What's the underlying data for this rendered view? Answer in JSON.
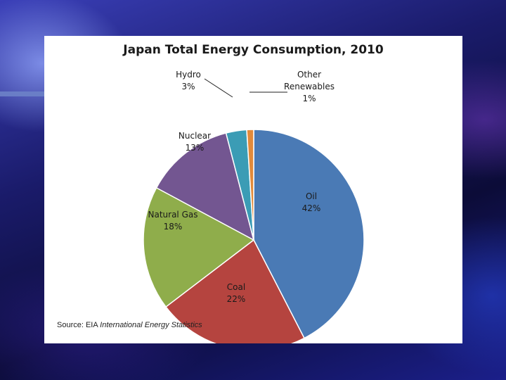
{
  "chart_data": {
    "type": "pie",
    "title": "Japan Total Energy Consumption, 2010",
    "slices": [
      {
        "id": "oil",
        "name": "Oil",
        "value": 42,
        "label": "42%",
        "color": "#4a7ab5"
      },
      {
        "id": "coal",
        "name": "Coal",
        "value": 22,
        "label": "22%",
        "color": "#b5443f"
      },
      {
        "id": "natural-gas",
        "name": "Natural Gas",
        "value": 18,
        "label": "18%",
        "color": "#8fad4b"
      },
      {
        "id": "nuclear",
        "name": "Nuclear",
        "value": 13,
        "label": "13%",
        "color": "#735691"
      },
      {
        "id": "hydro",
        "name": "Hydro",
        "value": 3,
        "label": "3%",
        "color": "#3b9cb5"
      },
      {
        "id": "other-renewables",
        "name": "Other Renewables",
        "name_lines": [
          "Other",
          "Renewables"
        ],
        "value": 1,
        "label": "1%",
        "color": "#e28a3a"
      }
    ],
    "start_angle_deg": 0,
    "direction": "clockwise"
  },
  "source": {
    "prefix": "Source: EIA",
    "italic": "International Energy Statistics"
  }
}
